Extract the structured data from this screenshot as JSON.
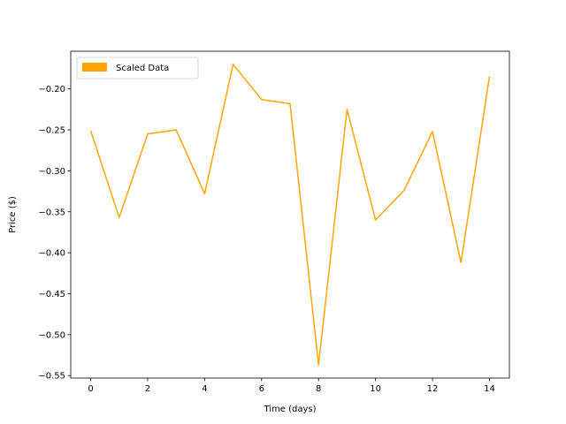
{
  "chart_data": {
    "type": "line",
    "title": "",
    "xlabel": "Time (days)",
    "ylabel": "Price ($)",
    "xlim": [
      -0.7,
      14.7
    ],
    "ylim": [
      -0.553,
      -0.154
    ],
    "xticks": [
      0,
      2,
      4,
      6,
      8,
      10,
      12,
      14
    ],
    "yticks": [
      -0.55,
      -0.5,
      -0.45,
      -0.4,
      -0.35,
      -0.3,
      -0.25,
      -0.2
    ],
    "xtick_labels": [
      "0",
      "2",
      "4",
      "6",
      "8",
      "10",
      "12",
      "14"
    ],
    "ytick_labels": [
      "−0.55",
      "−0.50",
      "−0.45",
      "−0.40",
      "−0.35",
      "−0.30",
      "−0.25",
      "−0.20"
    ],
    "grid": false,
    "legend": {
      "placement": "top-left",
      "entries": [
        "Scaled Data"
      ]
    },
    "series": [
      {
        "name": "Scaled Data",
        "color": "#FFA500",
        "x": [
          0,
          1,
          2,
          3,
          4,
          5,
          6,
          7,
          8,
          9,
          10,
          11,
          12,
          13,
          14
        ],
        "values": [
          -0.251,
          -0.357,
          -0.255,
          -0.25,
          -0.328,
          -0.17,
          -0.213,
          -0.218,
          -0.537,
          -0.225,
          -0.36,
          -0.324,
          -0.252,
          -0.412,
          -0.185
        ]
      }
    ]
  }
}
